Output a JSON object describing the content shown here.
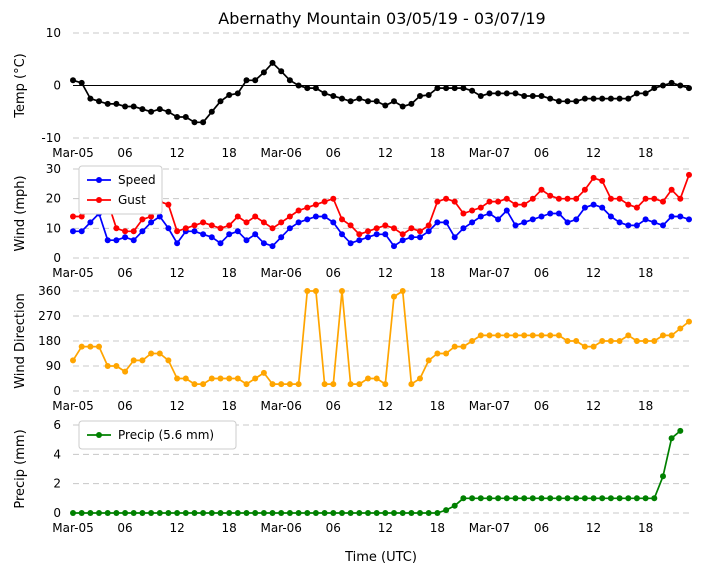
{
  "title": "Abernathy Mountain 03/05/19 - 03/07/19",
  "xlabel": "Time (UTC)",
  "x_ticks": [
    "Mar-05",
    "06",
    "12",
    "18",
    "Mar-06",
    "06",
    "12",
    "18",
    "Mar-07",
    "06",
    "12",
    "18"
  ],
  "x_tick_hours": [
    0,
    6,
    12,
    18,
    24,
    30,
    36,
    42,
    48,
    54,
    60,
    66
  ],
  "x_range_hours": [
    0,
    71
  ],
  "chart_data": [
    {
      "type": "line",
      "ylabel": "Temp (°C)",
      "ylim": [
        -10,
        10
      ],
      "yticks": [
        "-10",
        "0",
        "10"
      ],
      "reference_line": 0,
      "series": [
        {
          "name": "Temp",
          "color": "#000000",
          "values": [
            1,
            0.5,
            -2.5,
            -3,
            -3.5,
            -3.5,
            -4,
            -4,
            -4.5,
            -5,
            -4.5,
            -5,
            -6,
            -6,
            -7,
            -7,
            -5,
            -3,
            -1.8,
            -1.5,
            1,
            1,
            2.5,
            4.3,
            2.7,
            1,
            0,
            -0.5,
            -0.5,
            -1.5,
            -2,
            -2.5,
            -3,
            -2.5,
            -3,
            -3,
            -3.8,
            -3,
            -4,
            -3.5,
            -2,
            -1.8,
            -0.5,
            -0.5,
            -0.5,
            -0.5,
            -1,
            -2,
            -1.5,
            -1.5,
            -1.5,
            -1.5,
            -2,
            -2,
            -2,
            -2.5,
            -3,
            -3,
            -3,
            -2.5,
            -2.5,
            -2.5,
            -2.5,
            -2.5,
            -2.5,
            -1.5,
            -1.5,
            -0.5,
            0,
            0.5,
            0,
            -0.5
          ]
        }
      ]
    },
    {
      "type": "line",
      "ylabel": "Wind (mph)",
      "ylim": [
        0,
        30
      ],
      "yticks": [
        "0",
        "10",
        "20",
        "30"
      ],
      "legend": "upper-left",
      "series": [
        {
          "name": "Speed",
          "color": "#0000ff",
          "values": [
            9,
            9,
            12,
            15,
            6,
            6,
            7,
            6,
            9,
            12,
            14,
            10,
            5,
            9,
            9,
            8,
            7,
            5,
            8,
            9,
            6,
            8,
            5,
            4,
            7,
            10,
            12,
            13,
            14,
            14,
            12,
            8,
            5,
            6,
            7,
            8,
            8,
            4,
            6,
            7,
            7,
            9,
            12,
            12,
            7,
            10,
            12,
            14,
            15,
            13,
            16,
            11,
            12,
            13,
            14,
            15,
            15,
            12,
            13,
            17,
            18,
            17,
            14,
            12,
            11,
            11,
            13,
            12,
            11,
            14,
            14,
            13
          ]
        },
        {
          "name": "Gust",
          "color": "#ff0000",
          "values": [
            14,
            14,
            17,
            20,
            19,
            10,
            9,
            9,
            13,
            14,
            19,
            18,
            9,
            10,
            11,
            12,
            11,
            10,
            11,
            14,
            12,
            14,
            12,
            10,
            12,
            14,
            16,
            17,
            18,
            19,
            20,
            13,
            11,
            8,
            9,
            10,
            11,
            10,
            8,
            10,
            9,
            11,
            19,
            20,
            19,
            15,
            16,
            17,
            19,
            19,
            20,
            18,
            18,
            20,
            23,
            21,
            20,
            20,
            20,
            23,
            27,
            26,
            20,
            20,
            18,
            17,
            20,
            20,
            19,
            23,
            20,
            28
          ]
        }
      ]
    },
    {
      "type": "line",
      "ylabel": "Wind Direction",
      "ylim": [
        0,
        360
      ],
      "yticks": [
        "0",
        "90",
        "180",
        "270",
        "360"
      ],
      "series": [
        {
          "name": "Direction",
          "color": "#ffa500",
          "values": [
            110,
            160,
            160,
            160,
            90,
            90,
            70,
            110,
            110,
            135,
            135,
            110,
            45,
            45,
            25,
            25,
            45,
            45,
            45,
            45,
            25,
            45,
            65,
            25,
            25,
            25,
            25,
            360,
            360,
            25,
            25,
            360,
            25,
            25,
            45,
            45,
            25,
            340,
            360,
            25,
            45,
            110,
            135,
            135,
            160,
            160,
            180,
            200,
            200,
            200,
            200,
            200,
            200,
            200,
            200,
            200,
            200,
            180,
            180,
            160,
            160,
            180,
            180,
            180,
            200,
            180,
            180,
            180,
            200,
            200,
            225,
            250
          ]
        }
      ]
    },
    {
      "type": "line",
      "ylabel": "Precip (mm)",
      "ylim": [
        0,
        6
      ],
      "yticks": [
        "0",
        "2",
        "4",
        "6"
      ],
      "legend": "upper-left",
      "series": [
        {
          "name": "Precip (5.6 mm)",
          "color": "#008000",
          "values": [
            0,
            0,
            0,
            0,
            0,
            0,
            0,
            0,
            0,
            0,
            0,
            0,
            0,
            0,
            0,
            0,
            0,
            0,
            0,
            0,
            0,
            0,
            0,
            0,
            0,
            0,
            0,
            0,
            0,
            0,
            0,
            0,
            0,
            0,
            0,
            0,
            0,
            0,
            0,
            0,
            0,
            0,
            0,
            0.2,
            0.5,
            1,
            1,
            1,
            1,
            1,
            1,
            1,
            1,
            1,
            1,
            1,
            1,
            1,
            1,
            1,
            1,
            1,
            1,
            1,
            1,
            1,
            1,
            1,
            2.5,
            5.1,
            5.6
          ]
        }
      ]
    }
  ]
}
